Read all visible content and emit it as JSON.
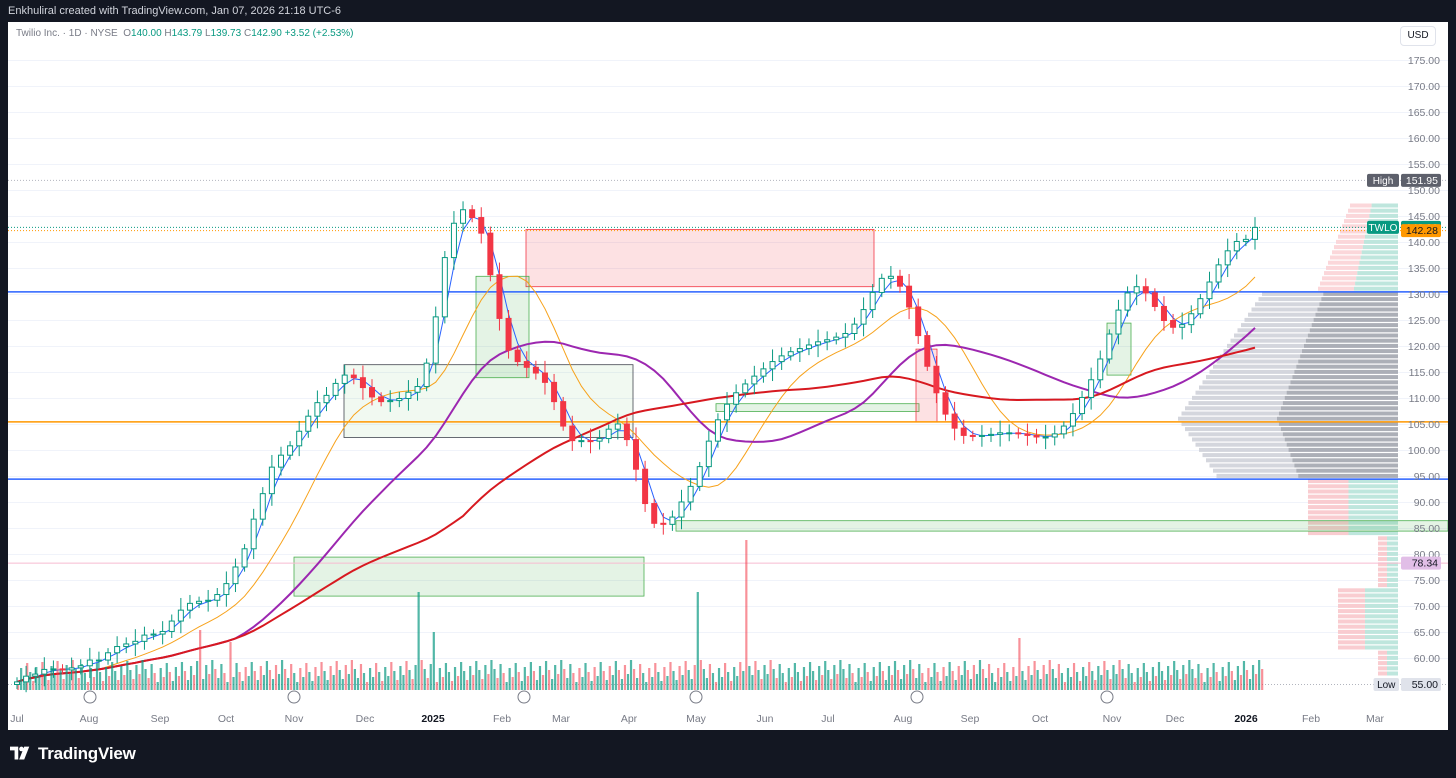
{
  "header": {
    "attribution": "Enkhuliral created with TradingView.com, Jan 07, 2026 21:18 UTC-6"
  },
  "legend": {
    "symbol": "Twilio Inc. · 1D · NYSE",
    "o_label": "O",
    "o_value": "140.00",
    "h_label": "H",
    "h_value": "143.79",
    "l_label": "L",
    "l_value": "139.73",
    "c_label": "C",
    "c_value": "142.90",
    "change": "+3.52 (+2.53%)"
  },
  "currency": "USD",
  "footer": {
    "brand": "TradingView"
  },
  "colors": {
    "up": "#089981",
    "down": "#f23645",
    "sma_blue": "#2962ff",
    "sma_orange": "#f7a21b",
    "sma_purple": "#9c27b0",
    "sma_red": "#d71920",
    "level_blue": "#2962ff",
    "level_orange": "#ff9800",
    "zone_green": "#4caf50",
    "zone_red": "#f23645",
    "label_teal": "#089981",
    "label_orange": "#ff9800"
  },
  "chart_data": {
    "type": "candlestick",
    "symbol": "TWLO",
    "interval": "1D",
    "y_axis": {
      "ticks": [
        "175.00",
        "170.00",
        "165.00",
        "160.00",
        "155.00",
        "150.00",
        "145.00",
        "140.00",
        "135.00",
        "130.00",
        "125.00",
        "120.00",
        "115.00",
        "110.00",
        "105.00",
        "100.00",
        "95.00",
        "90.00",
        "85.00",
        "80.00",
        "75.00",
        "70.00",
        "65.00",
        "60.00"
      ],
      "range": [
        53,
        180
      ]
    },
    "x_axis": {
      "ticks": [
        "Jul",
        "Aug",
        "Sep",
        "Oct",
        "Nov",
        "Dec",
        "2025",
        "Feb",
        "Mar",
        "Apr",
        "May",
        "Jun",
        "Jul",
        "Aug",
        "Sep",
        "Oct",
        "Nov",
        "Dec",
        "2026",
        "Feb",
        "Mar"
      ]
    },
    "price_labels": [
      {
        "name": "High",
        "value": "151.95"
      },
      {
        "name": "TWLO",
        "value": "142.90"
      },
      {
        "name": "",
        "value": "142.28"
      },
      {
        "name": "",
        "value": "78.34"
      },
      {
        "name": "Low",
        "value": "55.00"
      }
    ],
    "horizontal_levels": [
      {
        "value": 130.5,
        "color": "blue"
      },
      {
        "value": 105.5,
        "color": "orange"
      },
      {
        "value": 94.5,
        "color": "blue"
      },
      {
        "value": 78.34,
        "color": "pink"
      }
    ],
    "zones": [
      {
        "type": "red",
        "from": "Feb 2025",
        "to": "Jul 2025",
        "low": 131.5,
        "high": 142.5
      },
      {
        "type": "green",
        "from": "Jan 2025",
        "to": "Feb 2025",
        "low": 114,
        "high": 133.5
      },
      {
        "type": "gray",
        "from": "Nov 2024",
        "to": "Apr 2025",
        "low": 102.5,
        "high": 116.5
      },
      {
        "type": "green",
        "from": "Nov 2024",
        "to": "Apr 2025",
        "low": 72,
        "high": 79.5
      },
      {
        "type": "green",
        "from": "May 2025",
        "to": "Aug 2025",
        "low": 107.5,
        "high": 109
      },
      {
        "type": "green",
        "from": "Apr 2025",
        "to": "Mar 2026",
        "low": 84.5,
        "high": 86.5
      },
      {
        "type": "red",
        "from": "Aug 2025",
        "to": "Aug 2025",
        "low": 105.5,
        "high": 119.5
      },
      {
        "type": "green",
        "from": "Oct 2025",
        "to": "Nov 2025",
        "low": 114.5,
        "high": 124.5
      }
    ],
    "closes": [
      55.5,
      56.6,
      57.0,
      57.9,
      58.0,
      57.8,
      58.2,
      58.6,
      59.7,
      59.7,
      61.1,
      62.3,
      62.8,
      63.3,
      64.5,
      64.7,
      65.2,
      67.2,
      69.3,
      70.6,
      71.0,
      71.2,
      72.3,
      74.4,
      77.6,
      81.1,
      86.8,
      91.7,
      96.8,
      99.1,
      100.9,
      103.7,
      106.6,
      109.2,
      110.6,
      112.9,
      114.5,
      114.0,
      112.1,
      110.3,
      109.4,
      109.6,
      110.0,
      111.2,
      112.3,
      116.8,
      125.7,
      137.1,
      143.7,
      146.3,
      144.8,
      141.8,
      133.8,
      125.4,
      119.3,
      117.1,
      116.0,
      114.9,
      113.1,
      109.4,
      104.7,
      101.9,
      101.9,
      101.8,
      102.3,
      104.1,
      105.1,
      102.1,
      96.4,
      89.8,
      86.0,
      85.8,
      87.2,
      90.1,
      93.1,
      96.9,
      101.8,
      105.9,
      108.9,
      111.1,
      112.8,
      114.3,
      115.7,
      117.1,
      118.2,
      119.0,
      119.6,
      120.3,
      120.9,
      121.3,
      121.8,
      122.5,
      124.3,
      127.1,
      130.4,
      133.1,
      133.5,
      131.6,
      127.6,
      122.1,
      116.2,
      111.1,
      107.0,
      104.3,
      102.9,
      102.7,
      102.9,
      103.1,
      103.4,
      103.4,
      103.2,
      102.9,
      102.6,
      102.6,
      103.2,
      104.7,
      107.1,
      110.2,
      113.6,
      117.6,
      122.4,
      127.0,
      130.3,
      131.5,
      130.3,
      127.7,
      125.0,
      123.7,
      124.2,
      126.3,
      129.2,
      132.4,
      135.7,
      138.4,
      140.2,
      140.6,
      142.9
    ],
    "series": [
      {
        "name": "",
        "color": "blue"
      },
      {
        "name": "",
        "color": "orange"
      },
      {
        "name": "",
        "color": "purple"
      },
      {
        "name": "",
        "color": "red"
      }
    ],
    "volume_shown": true,
    "volume_profile_shown": true
  }
}
